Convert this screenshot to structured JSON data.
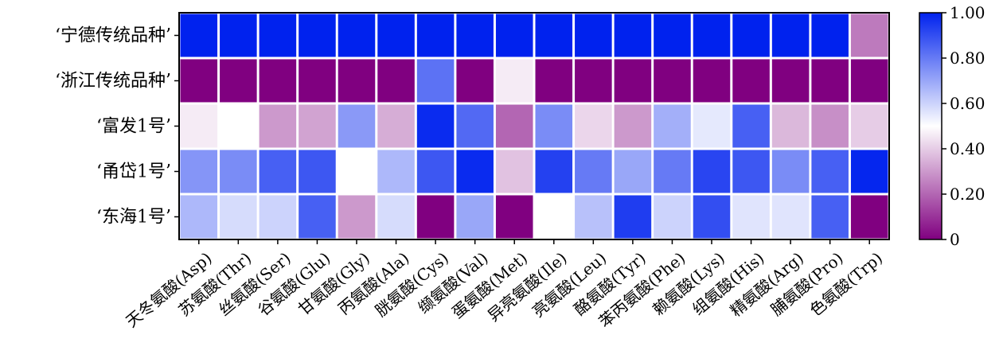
{
  "chart_data": {
    "type": "heatmap",
    "rows": [
      "‘宁德传统品种’",
      "‘浙江传统品种’",
      "‘富发1号’",
      "‘甬岱1号’",
      "‘东海1号’"
    ],
    "columns": [
      "天冬氨酸(Asp)",
      "苏氨酸(Thr)",
      "丝氨酸(Ser)",
      "谷氨酸(Glu)",
      "甘氨酸(Gly)",
      "丙氨酸(Ala)",
      "胱氨酸(Cys)",
      "缬氨酸(Val)",
      "蛋氨酸(Met)",
      "异亮氨酸(Ile)",
      "亮氨酸(Leu)",
      "酪氨酸(Tyr)",
      "苯丙氨酸(Phe)",
      "赖氨酸(Lys)",
      "组氨酸(His)",
      "精氨酸(Arg)",
      "脯氨酸(Pro)",
      "色氨酸(Trp)"
    ],
    "values": [
      [
        1.0,
        1.0,
        1.0,
        1.0,
        1.0,
        1.0,
        1.0,
        1.0,
        1.0,
        1.0,
        1.0,
        1.0,
        1.0,
        1.0,
        1.0,
        1.0,
        1.0,
        0.24
      ],
      [
        0.0,
        0.0,
        0.0,
        0.0,
        0.0,
        0.0,
        0.82,
        0.0,
        0.46,
        0.0,
        0.0,
        0.0,
        0.0,
        0.0,
        0.0,
        0.0,
        0.0,
        0.0
      ],
      [
        0.46,
        0.5,
        0.3,
        0.32,
        0.73,
        0.34,
        0.98,
        0.84,
        0.2,
        0.76,
        0.42,
        0.3,
        0.68,
        0.55,
        0.86,
        0.36,
        0.28,
        0.4
      ],
      [
        0.74,
        0.76,
        0.86,
        0.88,
        0.5,
        0.66,
        0.88,
        0.98,
        0.38,
        0.93,
        0.8,
        0.7,
        0.8,
        0.92,
        0.88,
        0.76,
        0.86,
        0.99
      ],
      [
        0.66,
        0.58,
        0.6,
        0.86,
        0.3,
        0.58,
        0.0,
        0.7,
        0.0,
        0.5,
        0.64,
        0.94,
        0.6,
        0.9,
        0.56,
        0.56,
        0.86,
        0.0
      ]
    ],
    "colorbar": {
      "min": 0,
      "max": 1,
      "ticks": [
        0,
        0.2,
        0.4,
        0.6,
        0.8,
        1.0
      ],
      "tick_labels": [
        "0",
        "0.20",
        "0.40",
        "0.60",
        "0.80",
        "1.00"
      ],
      "colors": [
        "#800080",
        "#ffffff",
        "#0022ee"
      ]
    }
  }
}
